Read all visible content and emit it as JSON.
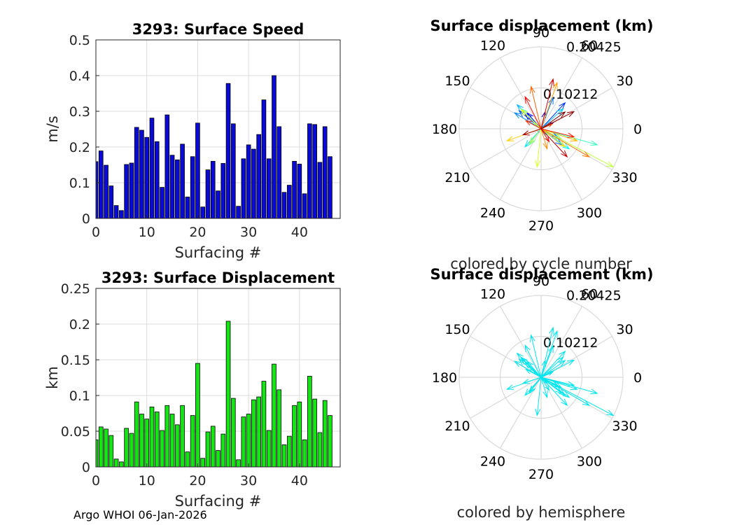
{
  "footer": "Argo WHOI 06-Jan-2026",
  "chart_data": [
    {
      "type": "bar",
      "title": "3293: Surface Speed",
      "xlabel": "Surfacing #",
      "ylabel": "m/s",
      "xlim": [
        0,
        48
      ],
      "ylim": [
        0,
        0.5
      ],
      "xticks": [
        0,
        10,
        20,
        30,
        40
      ],
      "yticks": [
        0,
        0.1,
        0.2,
        0.3,
        0.4,
        0.5
      ],
      "ytick_labels": [
        "0",
        "0.1",
        "0.2",
        "0.3",
        "0.4",
        "0.5"
      ],
      "bar_color": "#0a0ad7",
      "x": [
        0,
        1,
        2,
        3,
        4,
        5,
        6,
        7,
        8,
        9,
        10,
        11,
        12,
        13,
        14,
        15,
        16,
        17,
        18,
        19,
        20,
        21,
        22,
        23,
        24,
        25,
        26,
        27,
        28,
        29,
        30,
        31,
        32,
        33,
        34,
        35,
        36,
        37,
        38,
        39,
        40,
        41,
        42,
        43,
        44,
        45,
        46
      ],
      "values": [
        0.159,
        0.189,
        0.149,
        0.091,
        0.036,
        0.022,
        0.151,
        0.155,
        0.255,
        0.247,
        0.227,
        0.281,
        0.215,
        0.087,
        0.29,
        0.177,
        0.164,
        0.208,
        0.06,
        0.173,
        0.267,
        0.032,
        0.136,
        0.16,
        0.077,
        0.154,
        0.378,
        0.265,
        0.034,
        0.167,
        0.206,
        0.194,
        0.235,
        0.332,
        0.167,
        0.4,
        0.257,
        0.073,
        0.093,
        0.16,
        0.152,
        0.069,
        0.265,
        0.263,
        0.157,
        0.257,
        0.173
      ]
    },
    {
      "type": "bar",
      "title": "3293: Surface Displacement",
      "xlabel": "Surfacing #",
      "ylabel": "km",
      "xlim": [
        0,
        48
      ],
      "ylim": [
        0,
        0.25
      ],
      "xticks": [
        0,
        10,
        20,
        30,
        40
      ],
      "yticks": [
        0,
        0.05,
        0.1,
        0.15,
        0.2,
        0.25
      ],
      "ytick_labels": [
        "0",
        "0.05",
        "0.1",
        "0.15",
        "0.2",
        "0.25"
      ],
      "bar_color": "#14e614",
      "x": [
        0,
        1,
        2,
        3,
        4,
        5,
        6,
        7,
        8,
        9,
        10,
        11,
        12,
        13,
        14,
        15,
        16,
        17,
        18,
        19,
        20,
        21,
        22,
        23,
        24,
        25,
        26,
        27,
        28,
        29,
        30,
        31,
        32,
        33,
        34,
        35,
        36,
        37,
        38,
        39,
        40,
        41,
        42,
        43,
        44,
        45,
        46
      ],
      "values": [
        0.038,
        0.056,
        0.053,
        0.044,
        0.011,
        0.007,
        0.054,
        0.047,
        0.091,
        0.074,
        0.067,
        0.084,
        0.077,
        0.051,
        0.086,
        0.074,
        0.059,
        0.086,
        0.021,
        0.072,
        0.145,
        0.012,
        0.049,
        0.057,
        0.023,
        0.046,
        0.204,
        0.096,
        0.01,
        0.07,
        0.074,
        0.094,
        0.098,
        0.12,
        0.051,
        0.144,
        0.108,
        0.031,
        0.043,
        0.086,
        0.091,
        0.038,
        0.127,
        0.095,
        0.048,
        0.093,
        0.072
      ]
    },
    {
      "type": "polar-compass",
      "title": "Surface displacement (km)",
      "subtitle": "colored by cycle number",
      "rmax": 0.20425,
      "r_labels": [
        "0.10212",
        "0.20425"
      ],
      "theta_labels": [
        "0",
        "30",
        "60",
        "90",
        "120",
        "150",
        "180",
        "210",
        "240",
        "270",
        "300",
        "330"
      ],
      "color_mode": "cycle",
      "colormap": [
        "#00008f",
        "#0000ff",
        "#0080ff",
        "#00ffff",
        "#80ff80",
        "#ffff00",
        "#ff8000",
        "#ff0000",
        "#800000"
      ],
      "vectors": [
        {
          "u": 0.03,
          "v": 0.015
        },
        {
          "u": -0.04,
          "v": 0.038
        },
        {
          "u": 0.045,
          "v": -0.025
        },
        {
          "u": 0.01,
          "v": 0.042
        },
        {
          "u": -0.008,
          "v": -0.01
        },
        {
          "u": 0.004,
          "v": 0.006
        },
        {
          "u": -0.035,
          "v": 0.04
        },
        {
          "u": 0.04,
          "v": -0.02
        },
        {
          "u": 0.06,
          "v": 0.065
        },
        {
          "u": -0.055,
          "v": 0.045
        },
        {
          "u": 0.052,
          "v": -0.04
        },
        {
          "u": 0.03,
          "v": 0.078
        },
        {
          "u": -0.066,
          "v": 0.04
        },
        {
          "u": 0.045,
          "v": -0.025
        },
        {
          "u": -0.06,
          "v": 0.06
        },
        {
          "u": 0.055,
          "v": 0.05
        },
        {
          "u": -0.04,
          "v": -0.045
        },
        {
          "u": 0.07,
          "v": -0.05
        },
        {
          "u": 0.015,
          "v": -0.015
        },
        {
          "u": -0.05,
          "v": 0.05
        },
        {
          "u": 0.14,
          "v": -0.04
        },
        {
          "u": 0.01,
          "v": -0.005
        },
        {
          "u": -0.03,
          "v": -0.04
        },
        {
          "u": 0.05,
          "v": -0.025
        },
        {
          "u": -0.018,
          "v": 0.015
        },
        {
          "u": -0.028,
          "v": -0.036
        },
        {
          "u": 0.18,
          "v": -0.095
        },
        {
          "u": -0.01,
          "v": -0.095
        },
        {
          "u": 0.008,
          "v": 0.006
        },
        {
          "u": -0.05,
          "v": 0.048
        },
        {
          "u": 0.06,
          "v": -0.045
        },
        {
          "u": -0.085,
          "v": -0.03
        },
        {
          "u": 0.09,
          "v": -0.03
        },
        {
          "u": 0.04,
          "v": 0.115
        },
        {
          "u": 0.015,
          "v": -0.05
        },
        {
          "u": 0.12,
          "v": -0.07
        },
        {
          "u": -0.025,
          "v": 0.105
        },
        {
          "u": 0.028,
          "v": 0.012
        },
        {
          "u": -0.038,
          "v": 0.02
        },
        {
          "u": 0.082,
          "v": -0.02
        },
        {
          "u": -0.04,
          "v": 0.08
        },
        {
          "u": 0.02,
          "v": -0.032
        },
        {
          "u": 0.03,
          "v": 0.124
        },
        {
          "u": 0.065,
          "v": -0.07
        },
        {
          "u": -0.045,
          "v": -0.015
        },
        {
          "u": 0.082,
          "v": 0.043
        },
        {
          "u": 0.06,
          "v": 0.042
        }
      ]
    },
    {
      "type": "polar-compass",
      "title": "Surface displacement (km)",
      "subtitle": "colored by hemisphere",
      "rmax": 0.20425,
      "r_labels": [
        "0.10212",
        "0.20425"
      ],
      "theta_labels": [
        "0",
        "30",
        "60",
        "90",
        "120",
        "150",
        "180",
        "210",
        "240",
        "270",
        "300",
        "330"
      ],
      "color_mode": "single",
      "color": "#00e5ee",
      "vectors_ref": 2
    }
  ]
}
